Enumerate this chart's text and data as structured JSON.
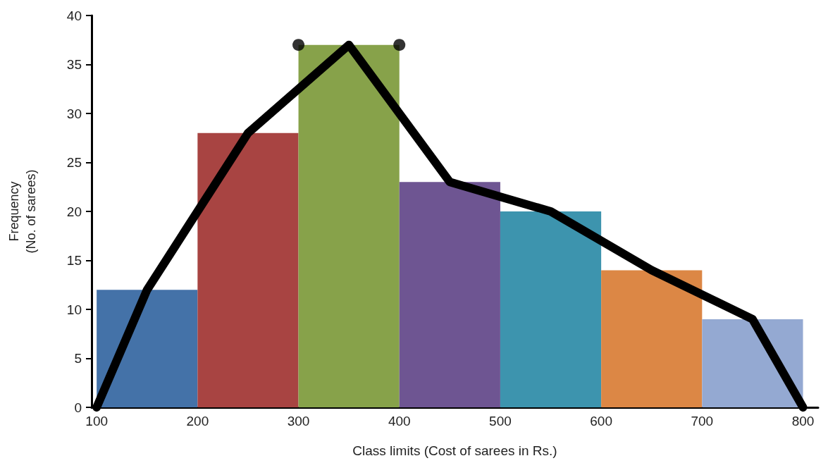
{
  "chart_data": {
    "type": "histogram",
    "xlabel": "Class limits (Cost of sarees in Rs.)",
    "ylabel": "Frequency\n(No. of sarees)",
    "bins": [
      100,
      200,
      300,
      400,
      500,
      600,
      700,
      800
    ],
    "values": [
      12,
      28,
      37,
      23,
      20,
      14,
      9
    ],
    "colors": [
      "#4472a8",
      "#a84442",
      "#87a24a",
      "#6e5592",
      "#3d94ae",
      "#dc8745",
      "#94a9d2"
    ],
    "series": [
      {
        "type": "line",
        "color": "#000000",
        "marker": "none",
        "line_style": "solid",
        "x": [
          100,
          150,
          250,
          350,
          450,
          550,
          650,
          750,
          800
        ],
        "values": [
          0,
          12,
          28,
          37,
          23,
          20,
          14,
          9,
          0
        ]
      },
      {
        "type": "scatter",
        "color": "#000000",
        "marker": "circle",
        "x": [
          300,
          400
        ],
        "values": [
          37,
          37
        ]
      }
    ],
    "xlim": [
      95,
      815
    ],
    "xticks": [
      100,
      200,
      300,
      400,
      500,
      600,
      700,
      800
    ],
    "ylim": [
      0,
      40
    ],
    "yticks": [
      0,
      5,
      10,
      15,
      20,
      25,
      30,
      35,
      40
    ],
    "grid": false
  }
}
